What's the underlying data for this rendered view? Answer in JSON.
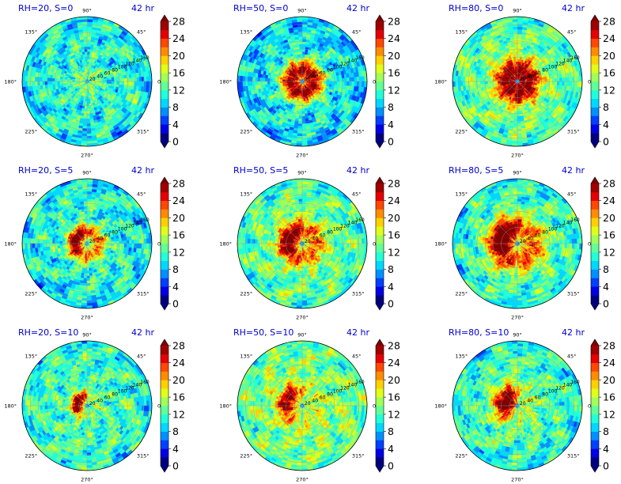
{
  "chart_data": {
    "type": "heatmap",
    "projection": "polar",
    "layout": "3x3 grid",
    "angle_tick_labels": [
      "90°",
      "45°",
      "0°",
      "315°",
      "270°",
      "225°",
      "180°",
      "135°"
    ],
    "radius_tick_labels": [
      "20",
      "40",
      "60",
      "80",
      "100",
      "120",
      "140",
      "160"
    ],
    "radius_range": [
      0,
      160
    ],
    "grid": true,
    "colormap": "jet",
    "colorbar": {
      "levels": [
        0,
        2,
        4,
        6,
        8,
        10,
        12,
        14,
        16,
        18,
        20,
        22,
        24,
        26,
        28
      ],
      "tick_labels": [
        "0",
        "4",
        "8",
        "12",
        "16",
        "20",
        "24",
        "28"
      ],
      "range": [
        0,
        28
      ],
      "extend": "both",
      "colors": [
        "#00007f",
        "#0000e6",
        "#0040ff",
        "#0090ff",
        "#00d8ff",
        "#20ffd8",
        "#60ff98",
        "#a0ff58",
        "#e0ff18",
        "#ffd000",
        "#ff8c00",
        "#ff4800",
        "#e60000",
        "#a00000"
      ],
      "under_color": "#00007f",
      "over_color": "#7f0000"
    },
    "panels": [
      {
        "id": "rh20-s0",
        "label": "RH=20, S=0",
        "time": "42 hr",
        "rh": 20,
        "shear": 0,
        "peak_value": 24,
        "peak_radius_km": 20,
        "background_value": 11
      },
      {
        "id": "rh50-s0",
        "label": "RH=50, S=0",
        "time": "42 hr",
        "rh": 50,
        "shear": 0,
        "peak_value": 28,
        "peak_radius_km": 28,
        "background_value": 10
      },
      {
        "id": "rh80-s0",
        "label": "RH=80, S=0",
        "time": "42 hr",
        "rh": 80,
        "shear": 0,
        "peak_value": 29,
        "peak_radius_km": 25,
        "background_value": 13
      },
      {
        "id": "rh20-s5",
        "label": "RH=20, S=5",
        "time": "42 hr",
        "rh": 20,
        "shear": 5,
        "peak_value": 28,
        "peak_radius_km": 30,
        "background_value": 11
      },
      {
        "id": "rh50-s5",
        "label": "RH=50, S=5",
        "time": "42 hr",
        "rh": 50,
        "shear": 5,
        "peak_value": 28,
        "peak_radius_km": 35,
        "background_value": 13
      },
      {
        "id": "rh80-s5",
        "label": "RH=80, S=5",
        "time": "42 hr",
        "rh": 80,
        "shear": 5,
        "peak_value": 29,
        "peak_radius_km": 40,
        "background_value": 12
      },
      {
        "id": "rh20-s10",
        "label": "RH=20, S=10",
        "time": "42 hr",
        "rh": 20,
        "shear": 10,
        "peak_value": 26,
        "peak_radius_km": 25,
        "background_value": 12
      },
      {
        "id": "rh50-s10",
        "label": "RH=50, S=10",
        "time": "42 hr",
        "rh": 50,
        "shear": 10,
        "peak_value": 24,
        "peak_radius_km": 40,
        "background_value": 14
      },
      {
        "id": "rh80-s10",
        "label": "RH=80, S=10",
        "time": "42 hr",
        "rh": 80,
        "shear": 10,
        "peak_value": 26,
        "peak_radius_km": 30,
        "background_value": 12
      }
    ]
  }
}
